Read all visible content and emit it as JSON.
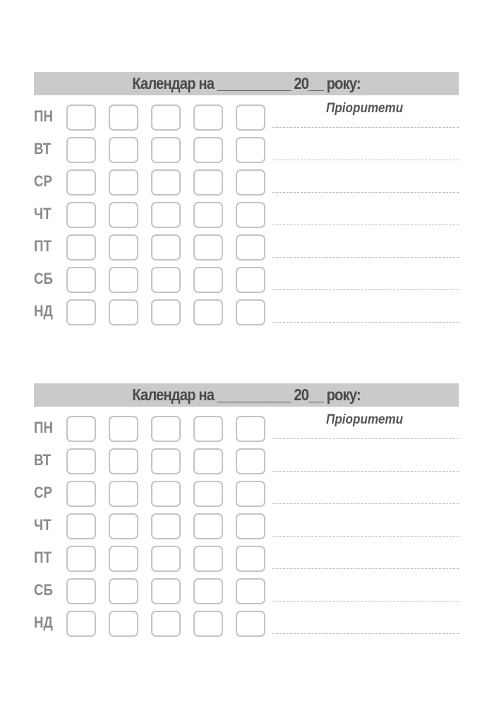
{
  "calendars": [
    {
      "title": "Календар на __________ 20__ року:",
      "priorities_label": "Пріоритети",
      "days": [
        "ПН",
        "ВТ",
        "СР",
        "ЧТ",
        "ПТ",
        "СБ",
        "НД"
      ]
    },
    {
      "title": "Календар на __________ 20__ року:",
      "priorities_label": "Пріоритети",
      "days": [
        "ПН",
        "ВТ",
        "СР",
        "ЧТ",
        "ПТ",
        "СБ",
        "НД"
      ]
    }
  ],
  "colors": {
    "header_bar": "#cacaca",
    "title_text": "#4a4a4a",
    "day_label": "#8a8a8a",
    "box_border": "#c4c4c4"
  }
}
